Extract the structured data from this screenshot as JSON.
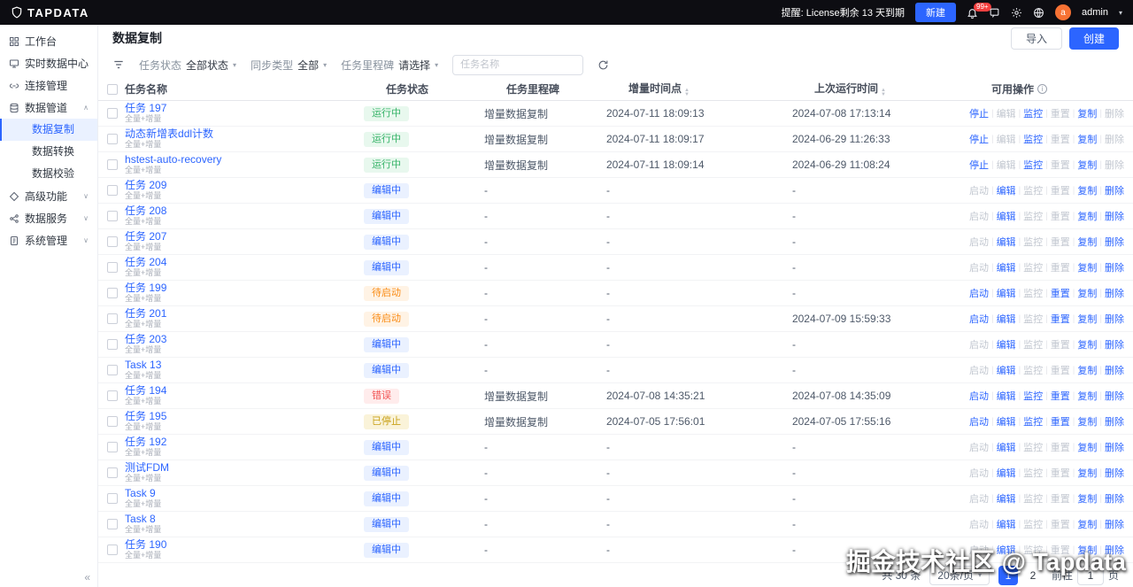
{
  "topbar": {
    "logo_text": "TAPDATA",
    "license_notice": "提醒: License剩余 13 天到期",
    "new_button": "新建",
    "notification_count": "99+",
    "username": "admin"
  },
  "sidebar": {
    "items": [
      {
        "label": "工作台"
      },
      {
        "label": "实时数据中心"
      },
      {
        "label": "连接管理"
      },
      {
        "label": "数据管道"
      },
      {
        "label": "数据复制"
      },
      {
        "label": "数据转换"
      },
      {
        "label": "数据校验"
      },
      {
        "label": "高级功能"
      },
      {
        "label": "数据服务"
      },
      {
        "label": "系统管理"
      }
    ],
    "collapse_label": "«"
  },
  "page": {
    "title": "数据复制",
    "import_button": "导入",
    "create_button": "创建"
  },
  "filters": {
    "status_label": "任务状态",
    "status_value": "全部状态",
    "sync_type_label": "同步类型",
    "sync_type_value": "全部",
    "milestone_label": "任务里程碑",
    "milestone_value": "请选择",
    "search_placeholder": "任务名称"
  },
  "table": {
    "columns": {
      "name": "任务名称",
      "status": "任务状态",
      "milestone": "任务里程碑",
      "incremental_time": "增量时间点",
      "last_run_time": "上次运行时间",
      "operations": "可用操作"
    },
    "status_styles": {
      "running": {
        "text": "#36b368",
        "bg": "#e8f8ee"
      },
      "editing": {
        "text": "#2c65ff",
        "bg": "#eaf1ff"
      },
      "pending": {
        "text": "#fa8c16",
        "bg": "#fff3e5"
      },
      "error": {
        "text": "#f25555",
        "bg": "#ffecec"
      },
      "stopped": {
        "text": "#c9a21a",
        "bg": "#faf3d9"
      }
    },
    "op_sets": {
      "running": [
        {
          "key": "stop",
          "label": "停止",
          "enabled": true
        },
        {
          "key": "edit",
          "label": "编辑",
          "enabled": false
        },
        {
          "key": "monitor",
          "label": "监控",
          "enabled": true
        },
        {
          "key": "reset",
          "label": "重置",
          "enabled": false
        },
        {
          "key": "copy",
          "label": "复制",
          "enabled": true
        },
        {
          "key": "delete",
          "label": "删除",
          "enabled": false
        }
      ],
      "editing": [
        {
          "key": "start",
          "label": "启动",
          "enabled": false
        },
        {
          "key": "edit",
          "label": "编辑",
          "enabled": true
        },
        {
          "key": "monitor",
          "label": "监控",
          "enabled": false
        },
        {
          "key": "reset",
          "label": "重置",
          "enabled": false
        },
        {
          "key": "copy",
          "label": "复制",
          "enabled": true
        },
        {
          "key": "delete",
          "label": "删除",
          "enabled": true
        }
      ],
      "pending": [
        {
          "key": "start",
          "label": "启动",
          "enabled": true
        },
        {
          "key": "edit",
          "label": "编辑",
          "enabled": true
        },
        {
          "key": "monitor",
          "label": "监控",
          "enabled": false
        },
        {
          "key": "reset",
          "label": "重置",
          "enabled": true
        },
        {
          "key": "copy",
          "label": "复制",
          "enabled": true
        },
        {
          "key": "delete",
          "label": "删除",
          "enabled": true
        }
      ],
      "error": [
        {
          "key": "start",
          "label": "启动",
          "enabled": true
        },
        {
          "key": "edit",
          "label": "编辑",
          "enabled": true
        },
        {
          "key": "monitor",
          "label": "监控",
          "enabled": true
        },
        {
          "key": "reset",
          "label": "重置",
          "enabled": true
        },
        {
          "key": "copy",
          "label": "复制",
          "enabled": true
        },
        {
          "key": "delete",
          "label": "删除",
          "enabled": true
        }
      ],
      "stopped": [
        {
          "key": "start",
          "label": "启动",
          "enabled": true
        },
        {
          "key": "edit",
          "label": "编辑",
          "enabled": true
        },
        {
          "key": "monitor",
          "label": "监控",
          "enabled": true
        },
        {
          "key": "reset",
          "label": "重置",
          "enabled": true
        },
        {
          "key": "copy",
          "label": "复制",
          "enabled": true
        },
        {
          "key": "delete",
          "label": "删除",
          "enabled": true
        }
      ]
    },
    "rows": [
      {
        "name": "任务 197",
        "subtitle": "全量+增量",
        "status": "运行中",
        "status_type": "running",
        "milestone": "增量数据复制",
        "incremental_time": "2024-07-11 18:09:13",
        "last_run_time": "2024-07-08 17:13:14"
      },
      {
        "name": "动态新增表ddl计数",
        "subtitle": "全量+增量",
        "status": "运行中",
        "status_type": "running",
        "milestone": "增量数据复制",
        "incremental_time": "2024-07-11 18:09:17",
        "last_run_time": "2024-06-29 11:26:33"
      },
      {
        "name": "hstest-auto-recovery",
        "subtitle": "全量+增量",
        "status": "运行中",
        "status_type": "running",
        "milestone": "增量数据复制",
        "incremental_time": "2024-07-11 18:09:14",
        "last_run_time": "2024-06-29 11:08:24"
      },
      {
        "name": "任务 209",
        "subtitle": "全量+增量",
        "status": "编辑中",
        "status_type": "editing",
        "milestone": "-",
        "incremental_time": "-",
        "last_run_time": "-"
      },
      {
        "name": "任务 208",
        "subtitle": "全量+增量",
        "status": "编辑中",
        "status_type": "editing",
        "milestone": "-",
        "incremental_time": "-",
        "last_run_time": "-"
      },
      {
        "name": "任务 207",
        "subtitle": "全量+增量",
        "status": "编辑中",
        "status_type": "editing",
        "milestone": "-",
        "incremental_time": "-",
        "last_run_time": "-"
      },
      {
        "name": "任务 204",
        "subtitle": "全量+增量",
        "status": "编辑中",
        "status_type": "editing",
        "milestone": "-",
        "incremental_time": "-",
        "last_run_time": "-"
      },
      {
        "name": "任务 199",
        "subtitle": "全量+增量",
        "status": "待启动",
        "status_type": "pending",
        "milestone": "-",
        "incremental_time": "-",
        "last_run_time": "-"
      },
      {
        "name": "任务 201",
        "subtitle": "全量+增量",
        "status": "待启动",
        "status_type": "pending",
        "milestone": "-",
        "incremental_time": "-",
        "last_run_time": "2024-07-09 15:59:33"
      },
      {
        "name": "任务 203",
        "subtitle": "全量+增量",
        "status": "编辑中",
        "status_type": "editing",
        "milestone": "-",
        "incremental_time": "-",
        "last_run_time": "-"
      },
      {
        "name": "Task 13",
        "subtitle": "全量+增量",
        "status": "编辑中",
        "status_type": "editing",
        "milestone": "-",
        "incremental_time": "-",
        "last_run_time": "-"
      },
      {
        "name": "任务 194",
        "subtitle": "全量+增量",
        "status": "错误",
        "status_type": "error",
        "milestone": "增量数据复制",
        "incremental_time": "2024-07-08 14:35:21",
        "last_run_time": "2024-07-08 14:35:09"
      },
      {
        "name": "任务 195",
        "subtitle": "全量+增量",
        "status": "已停止",
        "status_type": "stopped",
        "milestone": "增量数据复制",
        "incremental_time": "2024-07-05 17:56:01",
        "last_run_time": "2024-07-05 17:55:16"
      },
      {
        "name": "任务 192",
        "subtitle": "全量+增量",
        "status": "编辑中",
        "status_type": "editing",
        "milestone": "-",
        "incremental_time": "-",
        "last_run_time": "-"
      },
      {
        "name": "测试FDM",
        "subtitle": "全量+增量",
        "status": "编辑中",
        "status_type": "editing",
        "milestone": "-",
        "incremental_time": "-",
        "last_run_time": "-"
      },
      {
        "name": "Task 9",
        "subtitle": "全量+增量",
        "status": "编辑中",
        "status_type": "editing",
        "milestone": "-",
        "incremental_time": "-",
        "last_run_time": "-"
      },
      {
        "name": "Task 8",
        "subtitle": "全量+增量",
        "status": "编辑中",
        "status_type": "editing",
        "milestone": "-",
        "incremental_time": "-",
        "last_run_time": "-"
      },
      {
        "name": "任务 190",
        "subtitle": "全量+增量",
        "status": "编辑中",
        "status_type": "editing",
        "milestone": "-",
        "incremental_time": "-",
        "last_run_time": "-"
      }
    ]
  },
  "pagination": {
    "total": "共 30 条",
    "page_size": "20条/页",
    "pages": [
      "1",
      "2"
    ],
    "active_page": "1",
    "goto_label": "前往",
    "goto_value": "1",
    "goto_suffix": "页"
  },
  "watermark": "掘金技术社区 @ Tapdata",
  "colors": {
    "primary": "#2c65ff",
    "topbar_bg": "#0d0d12",
    "notification_badge": "#f53f3f"
  }
}
